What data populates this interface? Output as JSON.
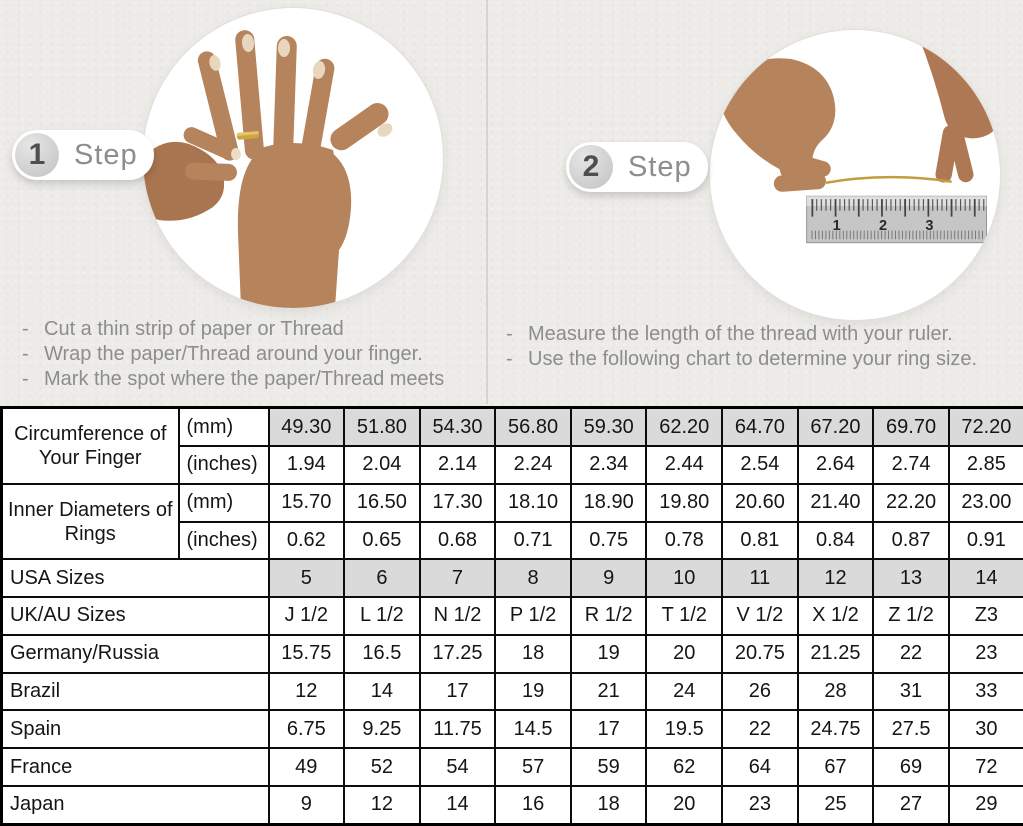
{
  "bullet": "-",
  "colors": {
    "page_background": "#ecebe7",
    "divider": "#d6d4cf",
    "shaded_cell": "#dadada",
    "table_border": "#000000",
    "instruction_text": "#8d8d8d",
    "gold_ring": "#c9a13b",
    "skin_tone": "#b5835c"
  },
  "steps": [
    {
      "number": "1",
      "label": "Step",
      "image": "hand-with-ring-photo",
      "instructions": [
        "Cut a thin strip of paper or Thread",
        "Wrap the paper/Thread around your finger.",
        "Mark the spot where the paper/Thread meets"
      ]
    },
    {
      "number": "2",
      "label": "Step",
      "image": "hands-measuring-thread-with-ruler-photo",
      "instructions": [
        "Measure the length of the thread with your ruler.",
        "Use the following chart to determine your ring size."
      ]
    }
  ],
  "ruler_numbers": [
    "1",
    "2",
    "3"
  ],
  "table": {
    "groups": [
      {
        "label": "Circumference of Your Finger",
        "sub_rows": [
          {
            "unit": "(mm)",
            "shaded": true,
            "values": [
              "49.30",
              "51.80",
              "54.30",
              "56.80",
              "59.30",
              "62.20",
              "64.70",
              "67.20",
              "69.70",
              "72.20"
            ]
          },
          {
            "unit": "(inches)",
            "shaded": false,
            "values": [
              "1.94",
              "2.04",
              "2.14",
              "2.24",
              "2.34",
              "2.44",
              "2.54",
              "2.64",
              "2.74",
              "2.85"
            ]
          }
        ]
      },
      {
        "label": "Inner Diameters of Rings",
        "sub_rows": [
          {
            "unit": "(mm)",
            "shaded": false,
            "values": [
              "15.70",
              "16.50",
              "17.30",
              "18.10",
              "18.90",
              "19.80",
              "20.60",
              "21.40",
              "22.20",
              "23.00"
            ]
          },
          {
            "unit": "(inches)",
            "shaded": false,
            "values": [
              "0.62",
              "0.65",
              "0.68",
              "0.71",
              "0.75",
              "0.78",
              "0.81",
              "0.84",
              "0.87",
              "0.91"
            ]
          }
        ]
      }
    ],
    "rows": [
      {
        "label": "USA Sizes",
        "shaded": true,
        "values": [
          "5",
          "6",
          "7",
          "8",
          "9",
          "10",
          "11",
          "12",
          "13",
          "14"
        ]
      },
      {
        "label": "UK/AU Sizes",
        "shaded": false,
        "values": [
          "J 1/2",
          "L 1/2",
          "N 1/2",
          "P 1/2",
          "R 1/2",
          "T 1/2",
          "V 1/2",
          "X 1/2",
          "Z 1/2",
          "Z3"
        ]
      },
      {
        "label": "Germany/Russia",
        "shaded": false,
        "values": [
          "15.75",
          "16.5",
          "17.25",
          "18",
          "19",
          "20",
          "20.75",
          "21.25",
          "22",
          "23"
        ]
      },
      {
        "label": "Brazil",
        "shaded": false,
        "values": [
          "12",
          "14",
          "17",
          "19",
          "21",
          "24",
          "26",
          "28",
          "31",
          "33"
        ]
      },
      {
        "label": "Spain",
        "shaded": false,
        "values": [
          "6.75",
          "9.25",
          "11.75",
          "14.5",
          "17",
          "19.5",
          "22",
          "24.75",
          "27.5",
          "30"
        ]
      },
      {
        "label": "France",
        "shaded": false,
        "values": [
          "49",
          "52",
          "54",
          "57",
          "59",
          "62",
          "64",
          "67",
          "69",
          "72"
        ]
      },
      {
        "label": "Japan",
        "shaded": false,
        "values": [
          "9",
          "12",
          "14",
          "16",
          "18",
          "20",
          "23",
          "25",
          "27",
          "29"
        ]
      }
    ]
  }
}
